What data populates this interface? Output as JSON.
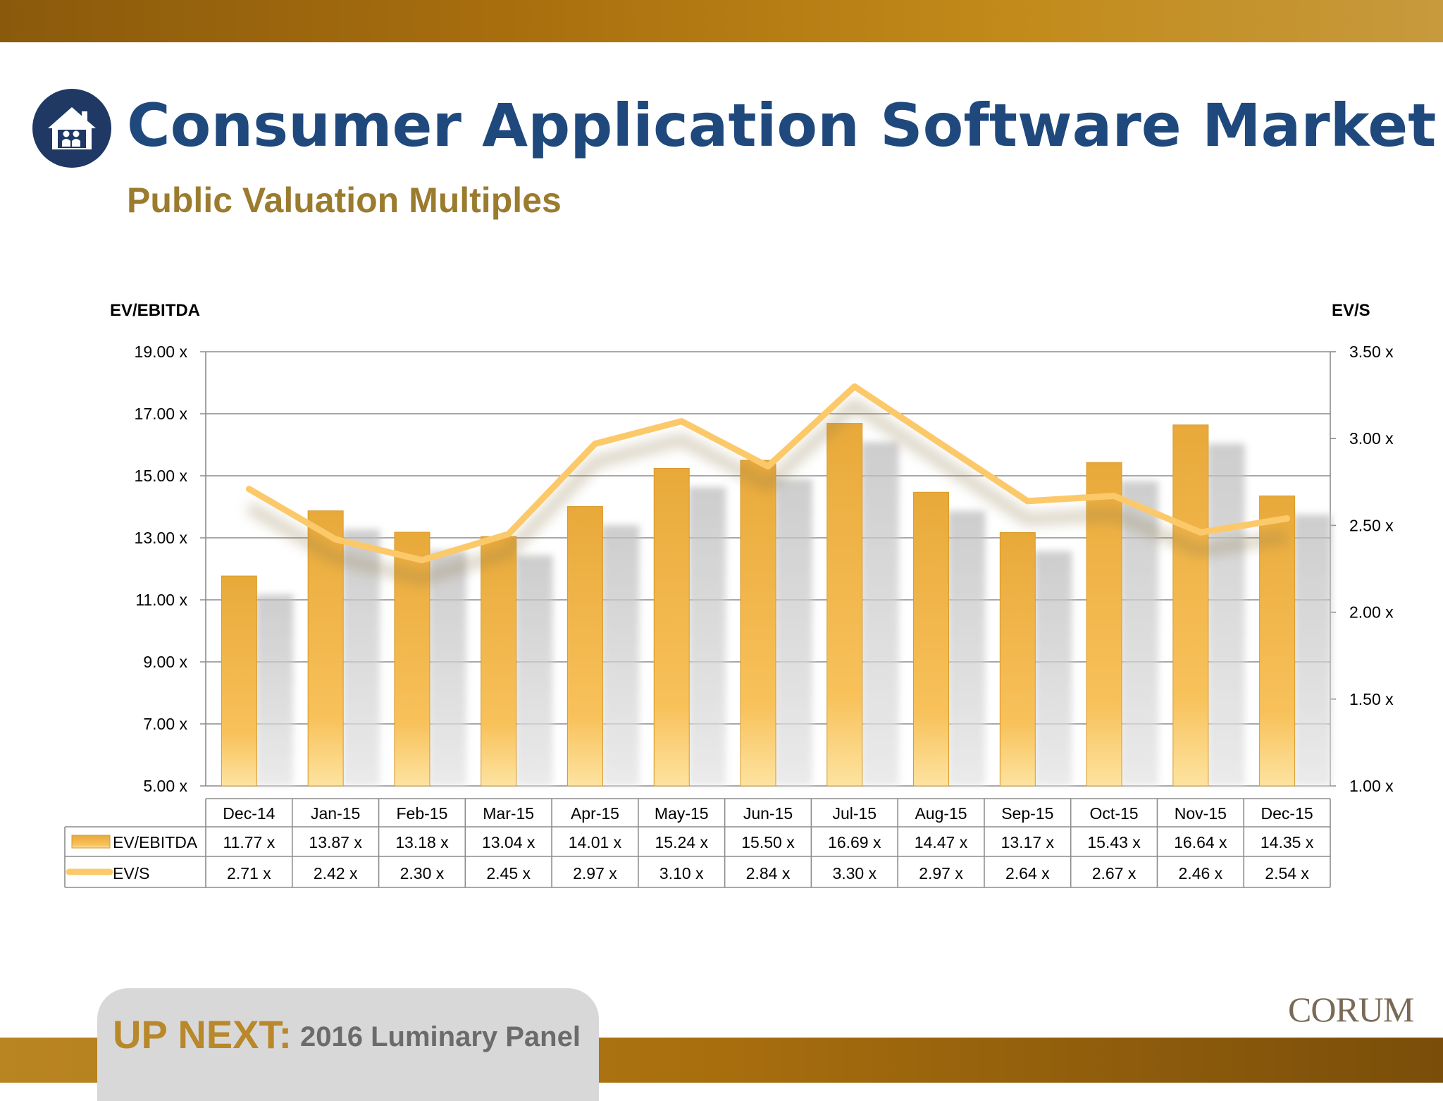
{
  "header": {
    "title": "Consumer Application Software Market",
    "subtitle": "Public Valuation Multiples",
    "logo_icon": "house-people-icon"
  },
  "footer": {
    "up_next_label": "UP NEXT:",
    "up_next_text": "2016 Luminary Panel",
    "brand": "CORUM"
  },
  "colors": {
    "title": "#1f497d",
    "subtitle": "#9b7c2e",
    "bar": "#e8a93a",
    "line": "#fcc96a",
    "gold": "#a86e0e"
  },
  "chart_data": {
    "type": "bar",
    "categories": [
      "Dec-14",
      "Jan-15",
      "Feb-15",
      "Mar-15",
      "Apr-15",
      "May-15",
      "Jun-15",
      "Jul-15",
      "Aug-15",
      "Sep-15",
      "Oct-15",
      "Nov-15",
      "Dec-15"
    ],
    "series": [
      {
        "name": "EV/EBITDA",
        "type": "bar",
        "axis": "left",
        "values": [
          11.77,
          13.87,
          13.18,
          13.04,
          14.01,
          15.24,
          15.5,
          16.69,
          14.47,
          13.17,
          15.43,
          16.64,
          14.35
        ],
        "labels": [
          "11.77 x",
          "13.87 x",
          "13.18 x",
          "13.04 x",
          "14.01 x",
          "15.24 x",
          "15.50 x",
          "16.69 x",
          "14.47 x",
          "13.17 x",
          "15.43 x",
          "16.64 x",
          "14.35 x"
        ]
      },
      {
        "name": "EV/S",
        "type": "line",
        "axis": "right",
        "values": [
          2.71,
          2.42,
          2.3,
          2.45,
          2.97,
          3.1,
          2.84,
          3.3,
          2.97,
          2.64,
          2.67,
          2.46,
          2.54
        ],
        "labels": [
          "2.71 x",
          "2.42 x",
          "2.30 x",
          "2.45 x",
          "2.97 x",
          "3.10 x",
          "2.84 x",
          "3.30 x",
          "2.97 x",
          "2.64 x",
          "2.67 x",
          "2.46 x",
          "2.54 x"
        ]
      }
    ],
    "ylabel": "EV/EBITDA",
    "y2label": "EV/S",
    "ylim": [
      5,
      19
    ],
    "y2lim": [
      1,
      3.5
    ],
    "yticks": [
      "5.00 x",
      "7.00 x",
      "9.00 x",
      "11.00 x",
      "13.00 x",
      "15.00 x",
      "17.00 x",
      "19.00 x"
    ],
    "y2ticks": [
      "1.00 x",
      "1.50 x",
      "2.00 x",
      "2.50 x",
      "3.00 x",
      "3.50 x"
    ],
    "grid": true,
    "legend": "data table below chart"
  }
}
